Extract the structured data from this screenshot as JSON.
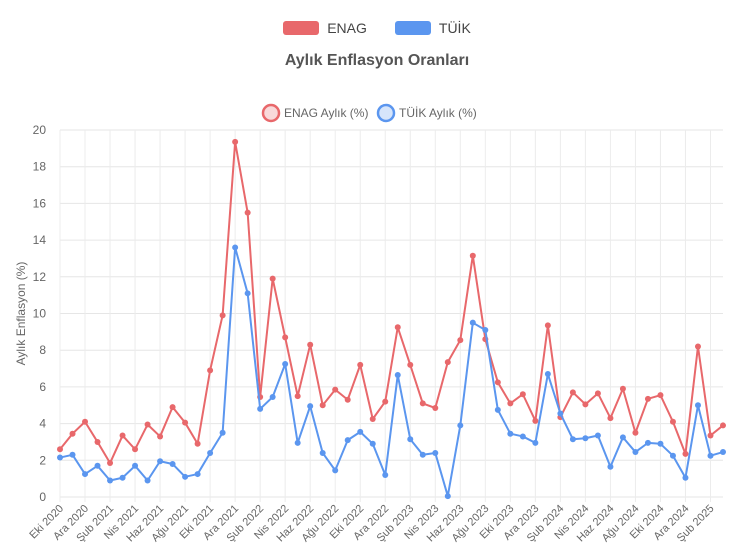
{
  "toggles": [
    {
      "label": "ENAG",
      "color": "#e8686b"
    },
    {
      "label": "TÜİK",
      "color": "#5b96ef"
    }
  ],
  "chart_data": {
    "type": "line",
    "title": "Aylık Enflasyon Oranları",
    "ylabel": "Aylık Enflasyon (%)",
    "xlabel": "",
    "ylim": [
      0,
      20
    ],
    "yticks": [
      0,
      2,
      4,
      6,
      8,
      10,
      12,
      14,
      16,
      18,
      20
    ],
    "grid": true,
    "legend_position": "top-center",
    "x": [
      "Eki 2020",
      "Kas 2020",
      "Ara 2020",
      "Oca 2021",
      "Şub 2021",
      "Mar 2021",
      "Nis 2021",
      "May 2021",
      "Haz 2021",
      "Tem 2021",
      "Ağu 2021",
      "Eyl 2021",
      "Eki 2021",
      "Kas 2021",
      "Ara 2021",
      "Oca 2022",
      "Şub 2022",
      "Mar 2022",
      "Nis 2022",
      "May 2022",
      "Haz 2022",
      "Tem 2022",
      "Ağu 2022",
      "Eyl 2022",
      "Eki 2022",
      "Kas 2022",
      "Ara 2022",
      "Oca 2023",
      "Şub 2023",
      "Mar 2023",
      "Nis 2023",
      "May 2023",
      "Haz 2023",
      "Tem 2023",
      "Ağu 2023",
      "Eyl 2023",
      "Eki 2023",
      "Kas 2023",
      "Ara 2023",
      "Oca 2024",
      "Şub 2024",
      "Mar 2024",
      "Nis 2024",
      "May 2024",
      "Haz 2024",
      "Tem 2024",
      "Ağu 2024",
      "Eyl 2024",
      "Eki 2024",
      "Kas 2024",
      "Ara 2024",
      "Oca 2025",
      "Şub 2025",
      "Mar 2025"
    ],
    "tick_labels": [
      "Eki 2020",
      "Ara 2020",
      "Şub 2021",
      "Nis 2021",
      "Haz 2021",
      "Ağu 2021",
      "Eki 2021",
      "Ara 2021",
      "Şub 2022",
      "Nis 2022",
      "Haz 2022",
      "Ağu 2022",
      "Eki 2022",
      "Ara 2022",
      "Şub 2023",
      "Nis 2023",
      "Haz 2023",
      "Ağu 2023",
      "Eki 2023",
      "Ara 2023",
      "Şub 2024",
      "Nis 2024",
      "Haz 2024",
      "Ağu 2024",
      "Eki 2024",
      "Ara 2024",
      "Şub 2025"
    ],
    "series": [
      {
        "name": "ENAG Aylık (%)",
        "color": "#e8686b",
        "values": [
          2.6,
          3.45,
          4.1,
          3.0,
          1.85,
          3.35,
          2.6,
          3.95,
          3.3,
          4.9,
          4.05,
          2.9,
          6.9,
          9.9,
          19.35,
          15.5,
          5.45,
          11.9,
          8.7,
          5.5,
          8.3,
          5.0,
          5.85,
          5.3,
          7.2,
          4.25,
          5.2,
          9.25,
          7.2,
          5.1,
          4.85,
          7.35,
          8.55,
          13.15,
          8.6,
          6.25,
          5.1,
          5.6,
          4.15,
          9.35,
          4.35,
          5.7,
          5.05,
          5.65,
          4.3,
          5.9,
          3.5,
          5.35,
          5.55,
          4.1,
          2.35,
          8.2,
          3.35,
          3.9
        ]
      },
      {
        "name": "TÜİK Aylık (%)",
        "color": "#5b96ef",
        "values": [
          2.15,
          2.3,
          1.25,
          1.7,
          0.9,
          1.05,
          1.7,
          0.9,
          1.95,
          1.8,
          1.1,
          1.25,
          2.4,
          3.5,
          13.6,
          11.1,
          4.8,
          5.45,
          7.25,
          2.95,
          4.95,
          2.4,
          1.45,
          3.1,
          3.55,
          2.9,
          1.2,
          6.65,
          3.15,
          2.3,
          2.4,
          0.05,
          3.9,
          9.5,
          9.1,
          4.75,
          3.45,
          3.3,
          2.95,
          6.7,
          4.55,
          3.15,
          3.2,
          3.35,
          1.65,
          3.25,
          2.45,
          2.95,
          2.9,
          2.25,
          1.05,
          5.0,
          2.25,
          2.45
        ]
      }
    ]
  }
}
